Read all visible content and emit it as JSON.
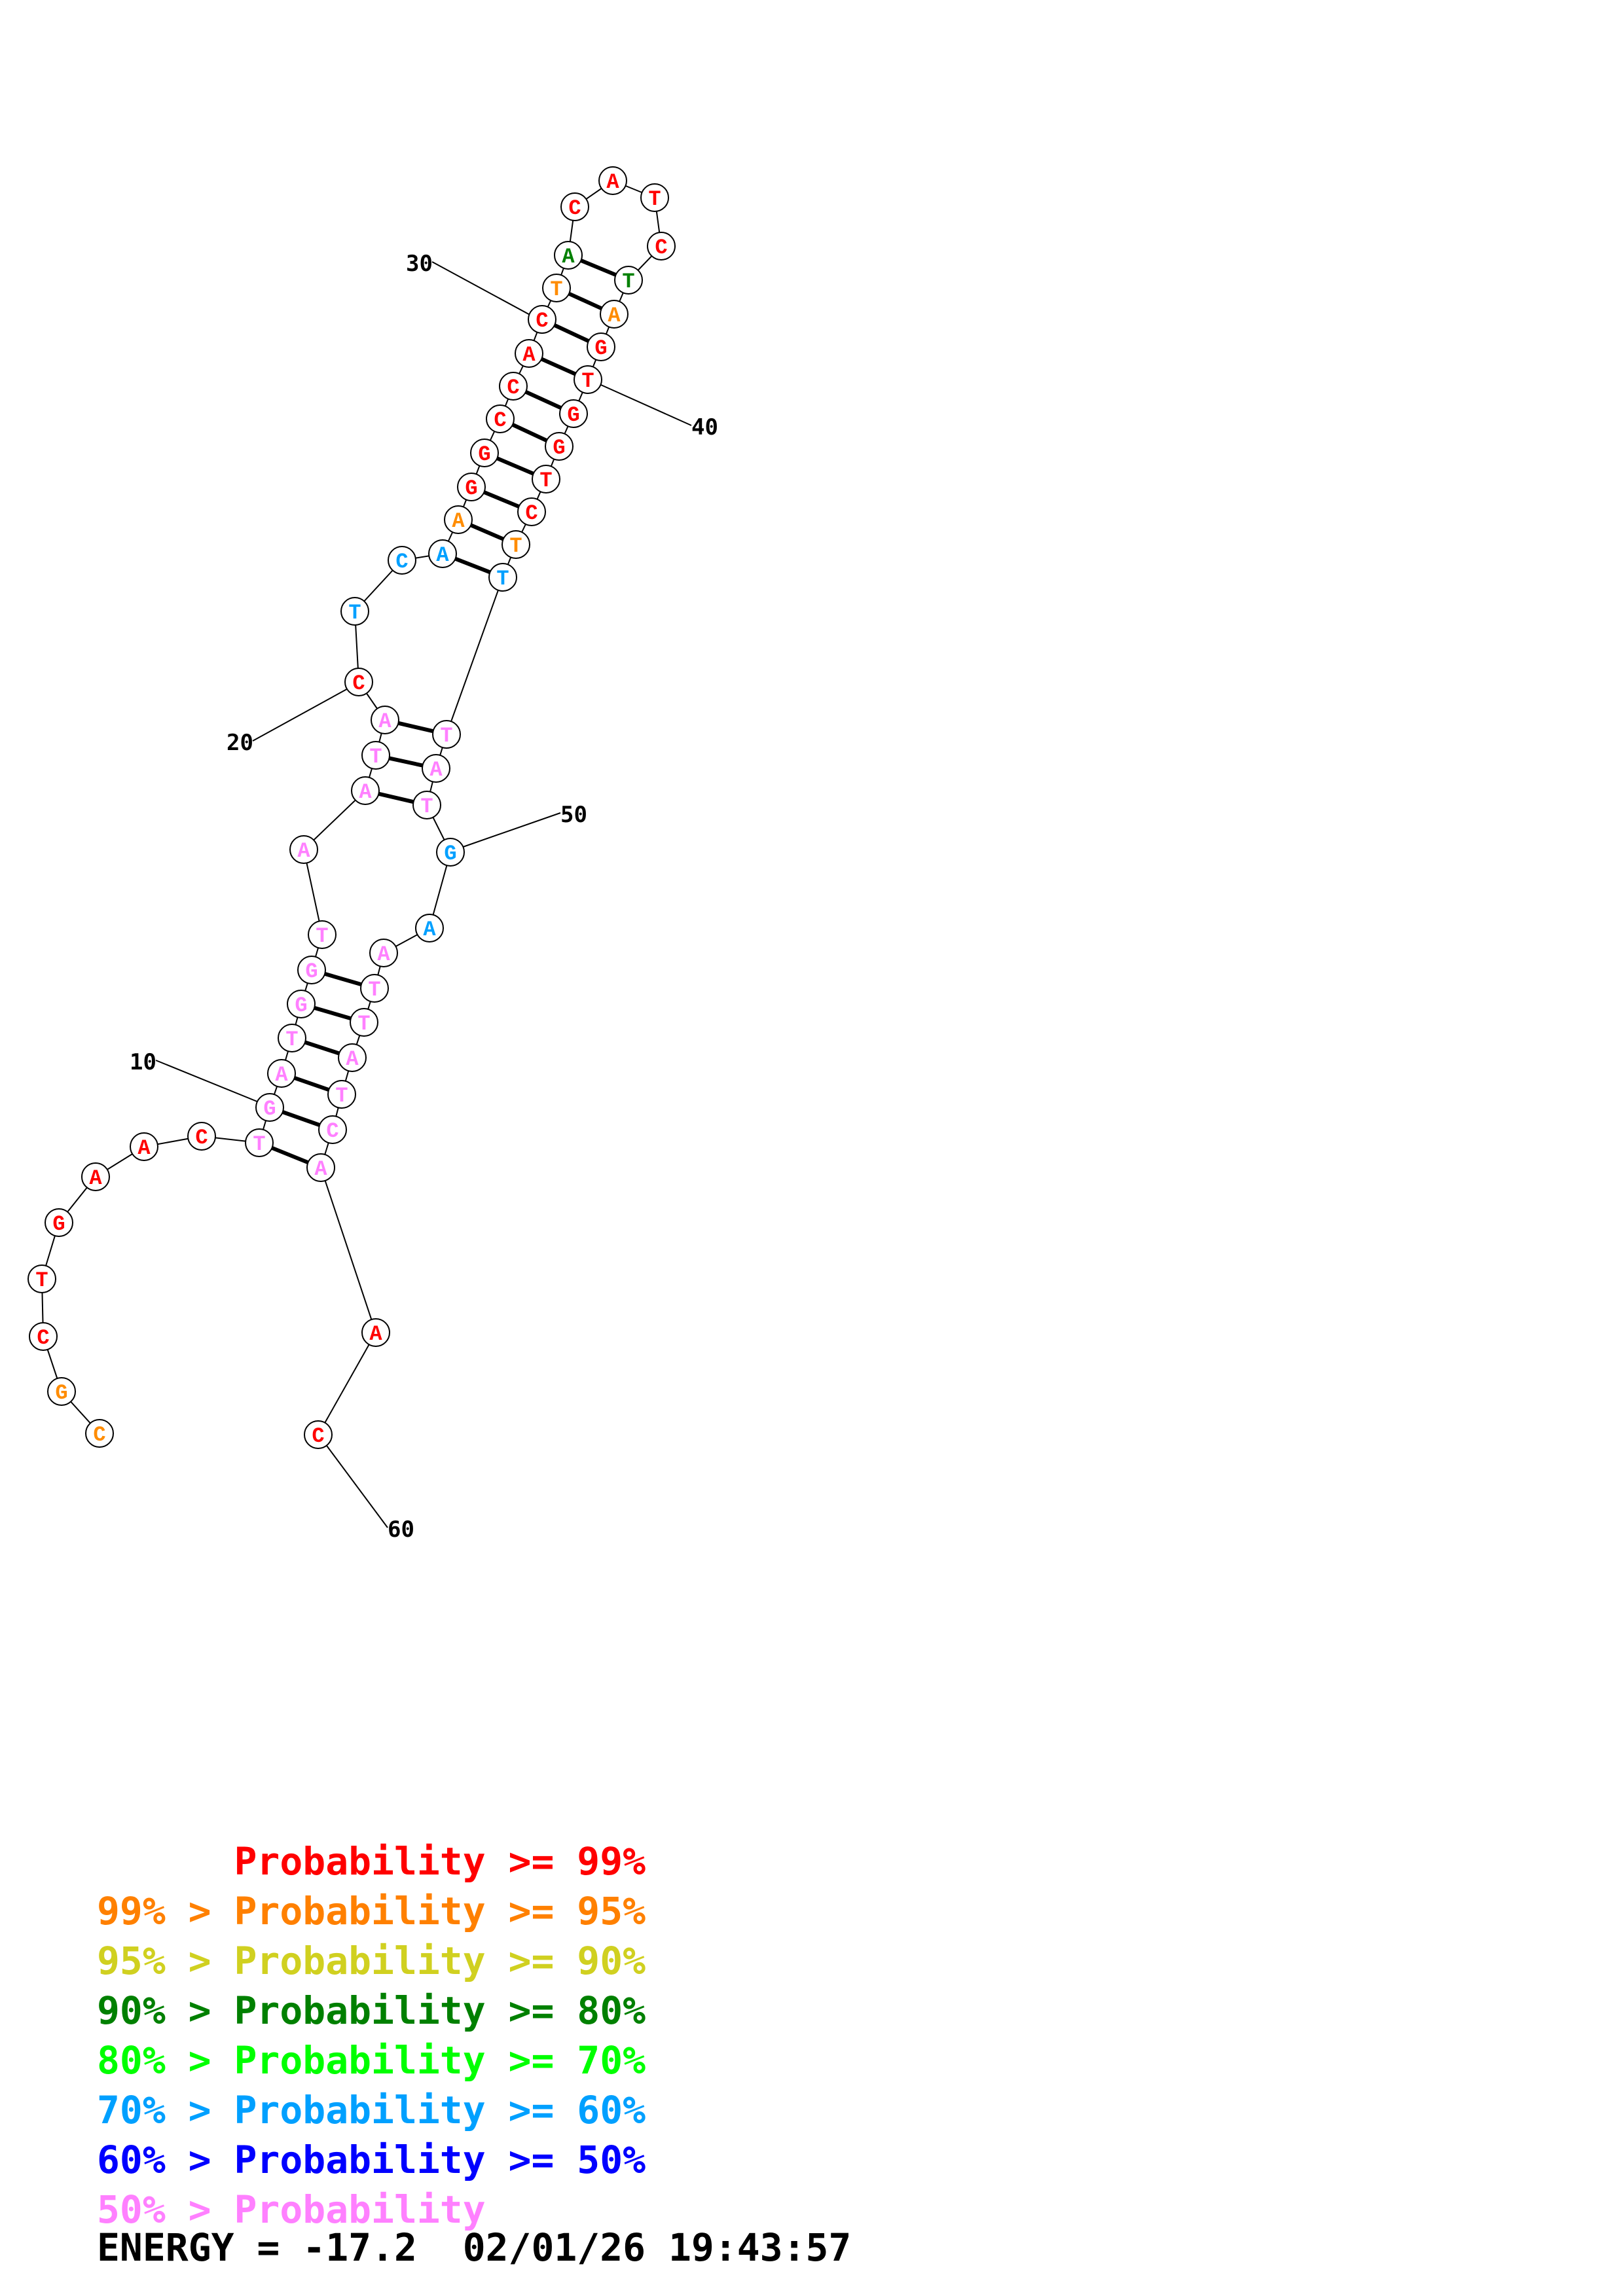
{
  "structure": {
    "bases": [
      {
        "n": 1,
        "b": "C",
        "c": "#ff8c00"
      },
      {
        "n": 2,
        "b": "G",
        "c": "#ff8c00"
      },
      {
        "n": 3,
        "b": "C",
        "c": "#ff0000"
      },
      {
        "n": 4,
        "b": "T",
        "c": "#ff0000"
      },
      {
        "n": 5,
        "b": "G",
        "c": "#ff0000"
      },
      {
        "n": 6,
        "b": "A",
        "c": "#ff0000"
      },
      {
        "n": 7,
        "b": "A",
        "c": "#ff0000"
      },
      {
        "n": 8,
        "b": "C",
        "c": "#ff0000"
      },
      {
        "n": 9,
        "b": "T",
        "c": "#ff80ff"
      },
      {
        "n": 10,
        "b": "G",
        "c": "#ff80ff"
      },
      {
        "n": 11,
        "b": "A",
        "c": "#ff80ff"
      },
      {
        "n": 12,
        "b": "T",
        "c": "#ff80ff"
      },
      {
        "n": 13,
        "b": "G",
        "c": "#ff80ff"
      },
      {
        "n": 14,
        "b": "G",
        "c": "#ff80ff"
      },
      {
        "n": 15,
        "b": "T",
        "c": "#ff80ff"
      },
      {
        "n": 16,
        "b": "A",
        "c": "#ff80ff"
      },
      {
        "n": 17,
        "b": "A",
        "c": "#ff80ff"
      },
      {
        "n": 18,
        "b": "T",
        "c": "#ff80ff"
      },
      {
        "n": 19,
        "b": "A",
        "c": "#ff80ff"
      },
      {
        "n": 20,
        "b": "C",
        "c": "#ff0000"
      },
      {
        "n": 21,
        "b": "T",
        "c": "#00a0ff"
      },
      {
        "n": 22,
        "b": "C",
        "c": "#00a0ff"
      },
      {
        "n": 23,
        "b": "A",
        "c": "#00a0ff"
      },
      {
        "n": 24,
        "b": "A",
        "c": "#ff8c00"
      },
      {
        "n": 25,
        "b": "G",
        "c": "#ff0000"
      },
      {
        "n": 26,
        "b": "G",
        "c": "#ff0000"
      },
      {
        "n": 27,
        "b": "C",
        "c": "#ff0000"
      },
      {
        "n": 28,
        "b": "C",
        "c": "#ff0000"
      },
      {
        "n": 29,
        "b": "A",
        "c": "#ff0000"
      },
      {
        "n": 30,
        "b": "C",
        "c": "#ff0000"
      },
      {
        "n": 31,
        "b": "T",
        "c": "#ff8c00"
      },
      {
        "n": 32,
        "b": "A",
        "c": "#008000"
      },
      {
        "n": 33,
        "b": "C",
        "c": "#ff0000"
      },
      {
        "n": 34,
        "b": "A",
        "c": "#ff0000"
      },
      {
        "n": 35,
        "b": "T",
        "c": "#ff0000"
      },
      {
        "n": 36,
        "b": "C",
        "c": "#ff0000"
      },
      {
        "n": 37,
        "b": "T",
        "c": "#008000"
      },
      {
        "n": 38,
        "b": "A",
        "c": "#ff8c00"
      },
      {
        "n": 39,
        "b": "G",
        "c": "#ff0000"
      },
      {
        "n": 40,
        "b": "T",
        "c": "#ff0000"
      },
      {
        "n": 41,
        "b": "G",
        "c": "#ff0000"
      },
      {
        "n": 42,
        "b": "G",
        "c": "#ff0000"
      },
      {
        "n": 43,
        "b": "T",
        "c": "#ff0000"
      },
      {
        "n": 44,
        "b": "C",
        "c": "#ff0000"
      },
      {
        "n": 45,
        "b": "T",
        "c": "#ff8c00"
      },
      {
        "n": 46,
        "b": "T",
        "c": "#00a0ff"
      },
      {
        "n": 47,
        "b": "T",
        "c": "#ff80ff"
      },
      {
        "n": 48,
        "b": "A",
        "c": "#ff80ff"
      },
      {
        "n": 49,
        "b": "T",
        "c": "#ff80ff"
      },
      {
        "n": 50,
        "b": "G",
        "c": "#00a0ff"
      },
      {
        "n": 51,
        "b": "A",
        "c": "#00a0ff"
      },
      {
        "n": 52,
        "b": "A",
        "c": "#ff80ff"
      },
      {
        "n": 53,
        "b": "T",
        "c": "#ff80ff"
      },
      {
        "n": 54,
        "b": "T",
        "c": "#ff80ff"
      },
      {
        "n": 55,
        "b": "A",
        "c": "#ff80ff"
      },
      {
        "n": 56,
        "b": "T",
        "c": "#ff80ff"
      },
      {
        "n": 57,
        "b": "C",
        "c": "#ff80ff"
      },
      {
        "n": 58,
        "b": "A",
        "c": "#ff80ff"
      },
      {
        "n": 59,
        "b": "A",
        "c": "#ff0000"
      },
      {
        "n": 60,
        "b": "C",
        "c": "#ff0000"
      }
    ],
    "pairs": [
      [
        9,
        58
      ],
      [
        10,
        57
      ],
      [
        11,
        56
      ],
      [
        12,
        55
      ],
      [
        13,
        54
      ],
      [
        14,
        53
      ],
      [
        17,
        49
      ],
      [
        18,
        48
      ],
      [
        19,
        47
      ],
      [
        23,
        46
      ],
      [
        24,
        45
      ],
      [
        25,
        44
      ],
      [
        26,
        43
      ],
      [
        27,
        42
      ],
      [
        28,
        41
      ],
      [
        29,
        40
      ],
      [
        30,
        39
      ],
      [
        31,
        38
      ],
      [
        32,
        37
      ]
    ],
    "position_labels": [
      {
        "n": 10,
        "text": "10"
      },
      {
        "n": 20,
        "text": "20"
      },
      {
        "n": 30,
        "text": "30"
      },
      {
        "n": 40,
        "text": "40"
      },
      {
        "n": 50,
        "text": "50"
      },
      {
        "n": 60,
        "text": "60"
      }
    ]
  },
  "legend": [
    {
      "prefix": "",
      "label": "Probability >= 99%",
      "color": "#ff0000"
    },
    {
      "prefix": "99% > ",
      "label": "Probability >= 95%",
      "color": "#ff8000"
    },
    {
      "prefix": "95% > ",
      "label": "Probability >= 90%",
      "color": "#d0d020"
    },
    {
      "prefix": "90% > ",
      "label": "Probability >= 80%",
      "color": "#008000"
    },
    {
      "prefix": "80% > ",
      "label": "Probability >= 70%",
      "color": "#00ff00"
    },
    {
      "prefix": "70% > ",
      "label": "Probability >= 60%",
      "color": "#00a0ff"
    },
    {
      "prefix": "60% > ",
      "label": "Probability >= 50%",
      "color": "#0000ff"
    },
    {
      "prefix": "50% > ",
      "label": "Probability",
      "color": "#ff80ff"
    }
  ],
  "energy": {
    "text": "ENERGY = -17.2  02/01/26 19:43:57"
  }
}
